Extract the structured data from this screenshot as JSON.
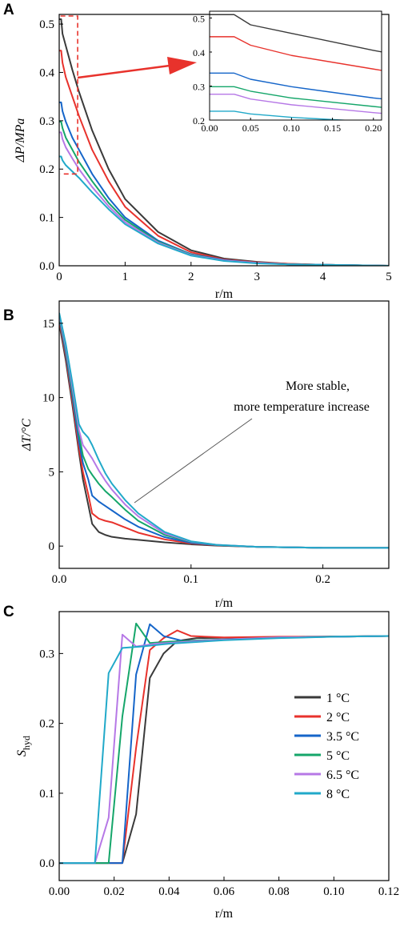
{
  "colors": {
    "1": "#3a3a3a",
    "2": "#e8322c",
    "3.5": "#1565c9",
    "5": "#15a66a",
    "6.5": "#b678e6",
    "8": "#21a9c9"
  },
  "chart_data": [
    {
      "panel": "A",
      "type": "line",
      "xlabel": "r/m",
      "ylabel": "ΔP/MPa",
      "xlim": [
        0,
        5
      ],
      "ylim": [
        0,
        0.52
      ],
      "xticks": [
        "0",
        "1",
        "2",
        "3",
        "4",
        "5"
      ],
      "yticks": [
        "0.0",
        "0.1",
        "0.2",
        "0.3",
        "0.4",
        "0.5"
      ],
      "series": [
        {
          "key": "1",
          "x": [
            0,
            0.03,
            0.05,
            0.1,
            0.2,
            0.3,
            0.5,
            0.75,
            1,
            1.5,
            2,
            2.5,
            3,
            3.5,
            4,
            5
          ],
          "y": [
            0.51,
            0.51,
            0.48,
            0.455,
            0.405,
            0.36,
            0.28,
            0.2,
            0.138,
            0.07,
            0.032,
            0.015,
            0.008,
            0.004,
            0.002,
            0
          ]
        },
        {
          "key": "2",
          "x": [
            0,
            0.03,
            0.05,
            0.1,
            0.2,
            0.3,
            0.5,
            0.75,
            1,
            1.5,
            2,
            2.5,
            3,
            3.5,
            4,
            5
          ],
          "y": [
            0.445,
            0.445,
            0.42,
            0.39,
            0.35,
            0.31,
            0.24,
            0.175,
            0.122,
            0.062,
            0.028,
            0.013,
            0.007,
            0.004,
            0.002,
            0
          ]
        },
        {
          "key": "3.5",
          "x": [
            0,
            0.03,
            0.05,
            0.1,
            0.2,
            0.3,
            0.5,
            0.75,
            1,
            1.5,
            2,
            2.5,
            3,
            3.5,
            4,
            5
          ],
          "y": [
            0.338,
            0.338,
            0.32,
            0.298,
            0.265,
            0.24,
            0.19,
            0.14,
            0.1,
            0.052,
            0.024,
            0.012,
            0.006,
            0.003,
            0.002,
            0
          ]
        },
        {
          "key": "5",
          "x": [
            0,
            0.03,
            0.05,
            0.1,
            0.2,
            0.3,
            0.5,
            0.75,
            1,
            1.5,
            2,
            2.5,
            3,
            3.5,
            4,
            5
          ],
          "y": [
            0.298,
            0.298,
            0.285,
            0.265,
            0.24,
            0.215,
            0.175,
            0.13,
            0.095,
            0.05,
            0.023,
            0.011,
            0.006,
            0.003,
            0.002,
            0
          ]
        },
        {
          "key": "6.5",
          "x": [
            0,
            0.03,
            0.05,
            0.1,
            0.2,
            0.3,
            0.5,
            0.75,
            1,
            1.5,
            2,
            2.5,
            3,
            3.5,
            4,
            5
          ],
          "y": [
            0.276,
            0.276,
            0.262,
            0.245,
            0.222,
            0.2,
            0.163,
            0.123,
            0.09,
            0.048,
            0.022,
            0.011,
            0.006,
            0.003,
            0.002,
            0
          ]
        },
        {
          "key": "8",
          "x": [
            0,
            0.03,
            0.05,
            0.1,
            0.2,
            0.3,
            0.5,
            0.75,
            1,
            1.5,
            2,
            2.5,
            3,
            3.5,
            4,
            5
          ],
          "y": [
            0.226,
            0.226,
            0.218,
            0.208,
            0.195,
            0.182,
            0.152,
            0.117,
            0.086,
            0.046,
            0.021,
            0.01,
            0.005,
            0.003,
            0.002,
            0
          ]
        }
      ],
      "inset": {
        "xlim": [
          0,
          0.21
        ],
        "ylim": [
          0.2,
          0.52
        ],
        "xticks": [
          "0.00",
          "0.05",
          "0.10",
          "0.15",
          "0.20"
        ],
        "yticks": [
          "0.2",
          "0.3",
          "0.4",
          "0.5"
        ]
      }
    },
    {
      "panel": "B",
      "type": "line",
      "xlabel": "r/m",
      "ylabel": "ΔT/°C",
      "xlim": [
        0,
        0.25
      ],
      "ylim": [
        -1.5,
        16.5
      ],
      "xticks": [
        "0.0",
        "0.1",
        "0.2"
      ],
      "yticks": [
        "0",
        "5",
        "10",
        "15"
      ],
      "annotation": [
        "More stable,",
        "more temperature increase"
      ],
      "series": [
        {
          "key": "1",
          "x": [
            0,
            0.005,
            0.01,
            0.015,
            0.018,
            0.022,
            0.025,
            0.03,
            0.035,
            0.04,
            0.05,
            0.06,
            0.08,
            0.1,
            0.12,
            0.15,
            0.2,
            0.25
          ],
          "y": [
            15,
            12.5,
            9.5,
            6.3,
            4.5,
            2.8,
            1.5,
            0.95,
            0.75,
            0.62,
            0.5,
            0.42,
            0.25,
            0.12,
            0.03,
            -0.05,
            -0.12,
            -0.12
          ]
        },
        {
          "key": "2",
          "x": [
            0,
            0.005,
            0.01,
            0.015,
            0.018,
            0.022,
            0.025,
            0.03,
            0.035,
            0.04,
            0.05,
            0.06,
            0.08,
            0.1,
            0.12,
            0.15,
            0.2,
            0.25
          ],
          "y": [
            15.2,
            12.8,
            9.8,
            6.6,
            5,
            3.5,
            2.2,
            1.85,
            1.7,
            1.6,
            1.25,
            0.9,
            0.45,
            0.18,
            0.05,
            -0.05,
            -0.12,
            -0.12
          ]
        },
        {
          "key": "3.5",
          "x": [
            0,
            0.005,
            0.01,
            0.015,
            0.018,
            0.022,
            0.025,
            0.03,
            0.035,
            0.04,
            0.05,
            0.06,
            0.08,
            0.1,
            0.12,
            0.15,
            0.2,
            0.25
          ],
          "y": [
            15.4,
            13,
            10.1,
            7,
            5.6,
            4.5,
            3.4,
            3,
            2.7,
            2.4,
            1.8,
            1.3,
            0.6,
            0.22,
            0.06,
            -0.05,
            -0.12,
            -0.12
          ]
        },
        {
          "key": "5",
          "x": [
            0,
            0.005,
            0.01,
            0.015,
            0.018,
            0.022,
            0.025,
            0.03,
            0.035,
            0.04,
            0.05,
            0.06,
            0.08,
            0.1,
            0.12,
            0.15,
            0.2,
            0.25
          ],
          "y": [
            15.5,
            13.2,
            10.4,
            7.5,
            6.1,
            5.2,
            4.8,
            4.2,
            3.7,
            3.3,
            2.45,
            1.7,
            0.75,
            0.28,
            0.07,
            -0.05,
            -0.12,
            -0.12
          ]
        },
        {
          "key": "6.5",
          "x": [
            0,
            0.005,
            0.01,
            0.015,
            0.018,
            0.022,
            0.025,
            0.03,
            0.035,
            0.04,
            0.05,
            0.06,
            0.08,
            0.1,
            0.12,
            0.15,
            0.2,
            0.25
          ],
          "y": [
            15.6,
            13.4,
            10.7,
            7.8,
            6.8,
            6.3,
            5.9,
            5.1,
            4.4,
            3.8,
            2.8,
            2,
            0.85,
            0.3,
            0.08,
            -0.05,
            -0.12,
            -0.12
          ]
        },
        {
          "key": "8",
          "x": [
            0,
            0.005,
            0.01,
            0.015,
            0.018,
            0.022,
            0.025,
            0.03,
            0.035,
            0.04,
            0.05,
            0.06,
            0.08,
            0.1,
            0.12,
            0.15,
            0.2,
            0.25
          ],
          "y": [
            15.7,
            13.6,
            11,
            8.2,
            7.7,
            7.3,
            6.8,
            5.8,
            4.9,
            4.2,
            3.1,
            2.2,
            0.95,
            0.32,
            0.08,
            -0.05,
            -0.12,
            -0.12
          ]
        }
      ]
    },
    {
      "panel": "C",
      "type": "line",
      "xlabel": "r/m",
      "ylabel": "S_hyd",
      "xlim": [
        0,
        0.12
      ],
      "ylim": [
        -0.025,
        0.36
      ],
      "xticks": [
        "0.00",
        "0.02",
        "0.04",
        "0.06",
        "0.08",
        "0.10",
        "0.12"
      ],
      "yticks": [
        "0.0",
        "0.1",
        "0.2",
        "0.3"
      ],
      "series": [
        {
          "key": "1",
          "label": "1 °C",
          "x": [
            0,
            0.023,
            0.028,
            0.033,
            0.038,
            0.043,
            0.05,
            0.07,
            0.09,
            0.12
          ],
          "y": [
            0,
            0,
            0.07,
            0.265,
            0.3,
            0.318,
            0.322,
            0.323,
            0.324,
            0.325
          ]
        },
        {
          "key": "2",
          "label": "2 °C",
          "x": [
            0,
            0.023,
            0.028,
            0.033,
            0.038,
            0.043,
            0.048,
            0.06,
            0.08,
            0.1,
            0.12
          ],
          "y": [
            0,
            0,
            0.165,
            0.305,
            0.322,
            0.333,
            0.325,
            0.323,
            0.324,
            0.324,
            0.325
          ]
        },
        {
          "key": "3.5",
          "label": "3.5 °C",
          "x": [
            0,
            0.023,
            0.028,
            0.033,
            0.038,
            0.045,
            0.06,
            0.08,
            0.1,
            0.12
          ],
          "y": [
            0,
            0,
            0.27,
            0.342,
            0.325,
            0.318,
            0.32,
            0.323,
            0.324,
            0.325
          ]
        },
        {
          "key": "5",
          "label": "5 °C",
          "x": [
            0,
            0.018,
            0.023,
            0.028,
            0.033,
            0.04,
            0.06,
            0.08,
            0.1,
            0.12
          ],
          "y": [
            0,
            0,
            0.21,
            0.343,
            0.315,
            0.317,
            0.32,
            0.323,
            0.324,
            0.325
          ]
        },
        {
          "key": "6.5",
          "label": "6.5 °C",
          "x": [
            0,
            0.013,
            0.018,
            0.023,
            0.028,
            0.035,
            0.06,
            0.08,
            0.1,
            0.12
          ],
          "y": [
            0,
            0,
            0.065,
            0.327,
            0.31,
            0.314,
            0.32,
            0.323,
            0.324,
            0.325
          ]
        },
        {
          "key": "8",
          "label": "8 °C",
          "x": [
            0,
            0.013,
            0.018,
            0.023,
            0.03,
            0.04,
            0.06,
            0.08,
            0.1,
            0.12
          ],
          "y": [
            0,
            0,
            0.272,
            0.308,
            0.31,
            0.314,
            0.319,
            0.322,
            0.324,
            0.325
          ]
        }
      ]
    }
  ]
}
